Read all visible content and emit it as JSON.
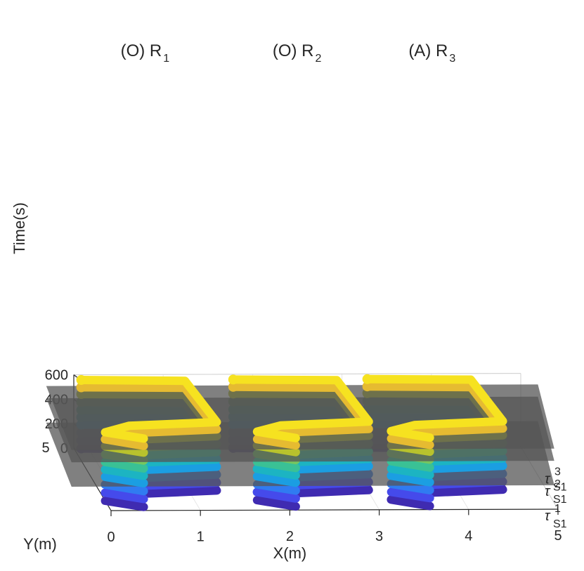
{
  "chart_data": {
    "type": "line3d",
    "xlabel": "X(m)",
    "ylabel": "Y(m)",
    "zlabel": "Time(s)",
    "xlim": [
      0,
      5
    ],
    "ylim": [
      0,
      5
    ],
    "zlim": [
      0,
      600
    ],
    "x_ticks": [
      "0",
      "1",
      "2",
      "3",
      "4",
      "5"
    ],
    "y_ticks": [
      "5"
    ],
    "z_ticks": [
      "0",
      "200",
      "400",
      "600"
    ],
    "colormap": "parula",
    "trajectory_color_by": "time",
    "robots": [
      {
        "name": "(O) R",
        "subscript": "1",
        "x_range": [
          0.0,
          1.3
        ],
        "trajectory": "repeated rectangular loops"
      },
      {
        "name": "(O) R",
        "subscript": "2",
        "x_range": [
          1.7,
          3.0
        ],
        "trajectory": "repeated rectangular loops"
      },
      {
        "name": "(A) R",
        "subscript": "3",
        "x_range": [
          3.2,
          4.5
        ],
        "trajectory": "repeated rectangular loops"
      }
    ],
    "time_planes": [
      {
        "symbol": "τ",
        "subscript": "S1",
        "superscript": "1",
        "z": 200,
        "color": "#555555"
      },
      {
        "symbol": "τ",
        "subscript": "S1",
        "superscript": "2",
        "z": 400,
        "color": "#555555"
      },
      {
        "symbol": "τ",
        "subscript": "S1",
        "superscript": "3",
        "z": 500,
        "color": "#555555"
      }
    ],
    "loop_times": [
      10,
      75,
      140,
      205,
      265,
      325,
      390,
      455,
      510,
      570
    ],
    "grid": true
  }
}
